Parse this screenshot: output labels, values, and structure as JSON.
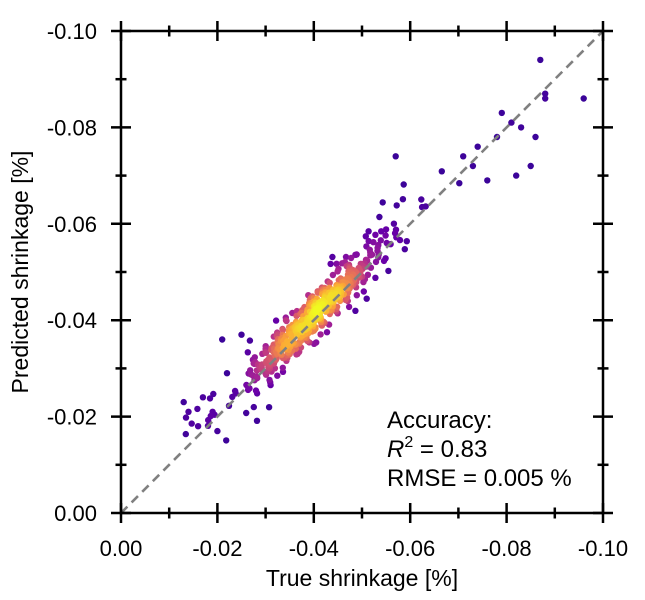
{
  "chart_data": {
    "type": "scatter",
    "xlabel": "True shrinkage [%]",
    "ylabel": "Predicted shrinkage [%]",
    "xlim": [
      0.0,
      -0.1
    ],
    "ylim": [
      0.0,
      -0.1
    ],
    "x_ticks": [
      0.0,
      -0.02,
      -0.04,
      -0.06,
      -0.08,
      -0.1
    ],
    "x_tick_labels": [
      "0.00",
      "-0.02",
      "-0.04",
      "-0.06",
      "-0.08",
      "-0.10"
    ],
    "y_ticks": [
      0.0,
      -0.02,
      -0.04,
      -0.06,
      -0.08,
      -0.1
    ],
    "y_tick_labels": [
      "0.00",
      "-0.02",
      "-0.04",
      "-0.06",
      "-0.08",
      "-0.10"
    ],
    "reference_line": {
      "from": [
        0.0,
        0.0
      ],
      "to": [
        -0.1,
        -0.1
      ],
      "style": "dashed",
      "color": "#808080"
    },
    "annotation": {
      "line1": "Accuracy:",
      "r2_symbol": "R",
      "r2_exp": "2",
      "r2_value": " = 0.83",
      "line3": "RMSE = 0.005 %"
    },
    "colormap": [
      "#2a0594",
      "#6a00a8",
      "#b12a90",
      "#e16462",
      "#fca636",
      "#f0f921"
    ],
    "seed": 11,
    "num_points": 520,
    "cluster_center": [
      -0.04,
      -0.041
    ],
    "outliers": [
      [
        -0.013,
        -0.023
      ],
      [
        -0.014,
        -0.021
      ],
      [
        -0.016,
        -0.018
      ],
      [
        -0.017,
        -0.024
      ],
      [
        -0.019,
        -0.021
      ],
      [
        -0.02,
        -0.017
      ],
      [
        -0.021,
        -0.036
      ],
      [
        -0.022,
        -0.029
      ],
      [
        -0.025,
        -0.037
      ],
      [
        -0.057,
        -0.074
      ],
      [
        -0.071,
        -0.074
      ],
      [
        -0.073,
        -0.072
      ],
      [
        -0.076,
        -0.069
      ],
      [
        -0.079,
        -0.083
      ],
      [
        -0.081,
        -0.081
      ],
      [
        -0.082,
        -0.07
      ],
      [
        -0.085,
        -0.072
      ],
      [
        -0.086,
        -0.078
      ],
      [
        -0.087,
        -0.094
      ],
      [
        -0.088,
        -0.087
      ],
      [
        -0.088,
        -0.086
      ],
      [
        -0.096,
        -0.086
      ],
      [
        -0.078,
        -0.078
      ],
      [
        -0.074,
        -0.076
      ],
      [
        -0.083,
        -0.08
      ]
    ]
  }
}
